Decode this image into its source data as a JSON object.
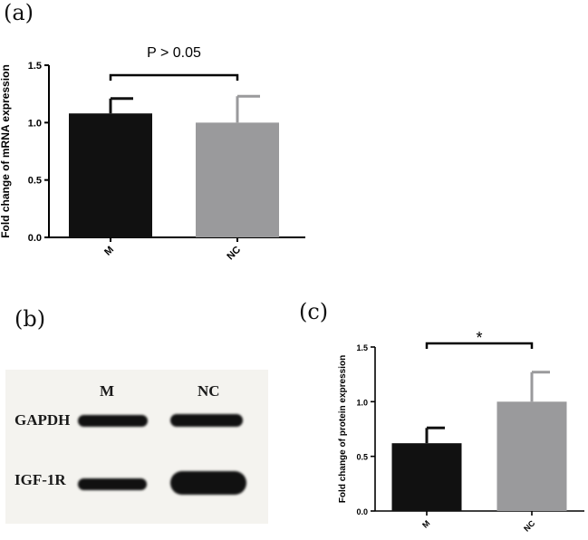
{
  "panels": {
    "a": {
      "label": "(a)"
    },
    "b": {
      "label": "(b)"
    },
    "c": {
      "label": "(c)"
    }
  },
  "blot": {
    "lanes": [
      "M",
      "NC"
    ],
    "rows": [
      "GAPDH",
      "IGF-1R"
    ]
  },
  "colors": {
    "M": "#111111",
    "NC": "#9a9a9c"
  },
  "chart_data": [
    {
      "type": "bar",
      "categories": [
        "M",
        "NC"
      ],
      "values": [
        1.08,
        1.0
      ],
      "errors": [
        0.13,
        0.23
      ],
      "ylabel": "Fold change of mRNA expression",
      "ylim": [
        0,
        1.5
      ],
      "yticks": [
        "0.0",
        "0.5",
        "1.0",
        "1.5"
      ],
      "annotation": "P > 0.05"
    },
    {
      "type": "bar",
      "categories": [
        "M",
        "NC"
      ],
      "values": [
        0.62,
        1.0
      ],
      "errors": [
        0.14,
        0.27
      ],
      "ylabel": "Fold change of protein expression",
      "ylim": [
        0,
        1.5
      ],
      "yticks": [
        "0.0",
        "0.5",
        "1.0",
        "1.5"
      ],
      "annotation": "*"
    }
  ]
}
